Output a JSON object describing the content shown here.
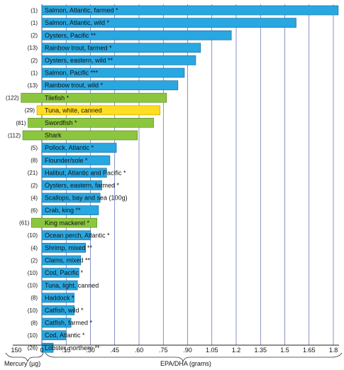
{
  "chart_data": {
    "type": "bar",
    "xlabel": "EPA/DHA (grams)",
    "mercury_label": "Mercury (µg)",
    "x_ticks": [
      "150",
      "0",
      ".15",
      ".30",
      ".45",
      ".60",
      ".75",
      ".90",
      "1.05",
      "1.2",
      "1.35",
      "1.5",
      "1.65",
      "1.8"
    ],
    "xlim_epa": [
      0,
      1.8
    ],
    "mercury_axis": {
      "min": 0,
      "max": 150
    },
    "grid": true,
    "colors": {
      "epa_bar": "#29a7e1",
      "epa_bar_border": "#1a6fa0",
      "high_mercury_bar": "#8cc63f",
      "high_mercury_border": "#5f8f27",
      "tuna_white": "#ffdd22",
      "tuna_white_border": "#c9a800",
      "grid": "#3b4aa0"
    },
    "categories": [
      {
        "name": "Salmon, Atlantic, farmed *",
        "mercury": "(1)",
        "mercury_value": 1,
        "epa_dha": 1.83,
        "group": "epa"
      },
      {
        "name": "Salmon, Atlantic, wild *",
        "mercury": "(1)",
        "mercury_value": 1,
        "epa_dha": 1.57,
        "group": "epa"
      },
      {
        "name": "Oysters, Pacific **",
        "mercury": "(2)",
        "mercury_value": 2,
        "epa_dha": 1.17,
        "group": "epa"
      },
      {
        "name": "Rainbow trout, farmed *",
        "mercury": "(13)",
        "mercury_value": 13,
        "epa_dha": 0.98,
        "group": "epa"
      },
      {
        "name": "Oysters, eastern, wild **",
        "mercury": "(2)",
        "mercury_value": 2,
        "epa_dha": 0.95,
        "group": "epa"
      },
      {
        "name": "Salmon, Pacific ***",
        "mercury": "(1)",
        "mercury_value": 1,
        "epa_dha": 0.88,
        "group": "epa"
      },
      {
        "name": "Rainbow trout, wild *",
        "mercury": "(13)",
        "mercury_value": 13,
        "epa_dha": 0.84,
        "group": "epa"
      },
      {
        "name": "Tilefish *",
        "mercury": "(122)",
        "mercury_value": 122,
        "epa_dha": 0.77,
        "group": "mercury"
      },
      {
        "name": "Tuna, white, canned",
        "mercury": "(29)",
        "mercury_value": 29,
        "epa_dha": 0.73,
        "group": "tuna"
      },
      {
        "name": "Swordfish *",
        "mercury": "(81)",
        "mercury_value": 81,
        "epa_dha": 0.69,
        "group": "mercury"
      },
      {
        "name": "Shark",
        "mercury": "(112)",
        "mercury_value": 112,
        "epa_dha": 0.59,
        "group": "mercury"
      },
      {
        "name": "Pollock, Atlantic *",
        "mercury": "(5)",
        "mercury_value": 5,
        "epa_dha": 0.46,
        "group": "epa"
      },
      {
        "name": "Flounder/sole *",
        "mercury": "(8)",
        "mercury_value": 8,
        "epa_dha": 0.42,
        "group": "epa"
      },
      {
        "name": "Halibut, Atlantic and Pacific *",
        "mercury": "(21)",
        "mercury_value": 21,
        "epa_dha": 0.4,
        "group": "epa"
      },
      {
        "name": "Oysters, eastern, farmed *",
        "mercury": "(2)",
        "mercury_value": 2,
        "epa_dha": 0.37,
        "group": "epa"
      },
      {
        "name": "Scallops, bay and sea (100g)",
        "mercury": "(4)",
        "mercury_value": 4,
        "epa_dha": 0.36,
        "group": "epa"
      },
      {
        "name": "Crab, king **",
        "mercury": "(6)",
        "mercury_value": 6,
        "epa_dha": 0.35,
        "group": "epa"
      },
      {
        "name": "King mackerel *",
        "mercury": "(61)",
        "mercury_value": 61,
        "epa_dha": 0.34,
        "group": "mercury"
      },
      {
        "name": "Ocean perch, Atlantic *",
        "mercury": "(10)",
        "mercury_value": 10,
        "epa_dha": 0.3,
        "group": "epa"
      },
      {
        "name": "Shrimp, mixed **",
        "mercury": "(4)",
        "mercury_value": 4,
        "epa_dha": 0.27,
        "group": "epa"
      },
      {
        "name": "Clams, mixed **",
        "mercury": "(2)",
        "mercury_value": 2,
        "epa_dha": 0.24,
        "group": "epa"
      },
      {
        "name": "Cod, Pacific *",
        "mercury": "(10)",
        "mercury_value": 10,
        "epa_dha": 0.23,
        "group": "epa"
      },
      {
        "name": "Tuna, light, canned",
        "mercury": "(10)",
        "mercury_value": 10,
        "epa_dha": 0.22,
        "group": "epa"
      },
      {
        "name": "Haddock *",
        "mercury": "(8)",
        "mercury_value": 8,
        "epa_dha": 0.2,
        "group": "epa"
      },
      {
        "name": "Catfish, wild *",
        "mercury": "(10)",
        "mercury_value": 10,
        "epa_dha": 0.2,
        "group": "epa"
      },
      {
        "name": "Catfish, farmed *",
        "mercury": "(8)",
        "mercury_value": 8,
        "epa_dha": 0.18,
        "group": "epa"
      },
      {
        "name": "Cod, Atlantic *",
        "mercury": "(10)",
        "mercury_value": 10,
        "epa_dha": 0.15,
        "group": "epa"
      },
      {
        "name": "Lobster, northern **",
        "mercury": "(26)",
        "mercury_value": 26,
        "epa_dha": 0.07,
        "group": "epa"
      }
    ]
  }
}
